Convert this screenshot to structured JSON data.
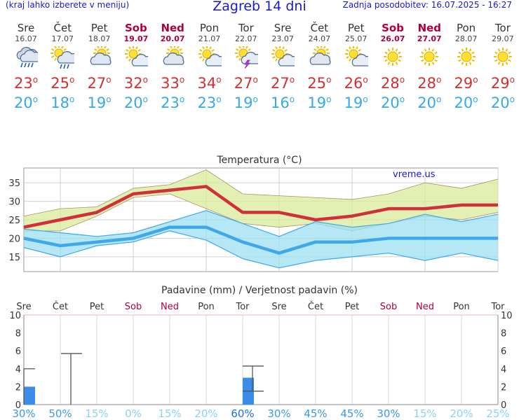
{
  "header": {
    "menu_hint": "(kraj lahko izberete v meniju)",
    "title": "Zagreb 14 dni",
    "updated": "Zadnja posodobitev: 16.07.2025 - 16:27"
  },
  "days": [
    {
      "name": "Sre",
      "date": "16.07",
      "weekend": false,
      "icon": "cloud-rain-icon",
      "tmax": "23",
      "tmin": "20"
    },
    {
      "name": "Čet",
      "date": "17.07",
      "weekend": false,
      "icon": "sun-cloud-rain-icon",
      "tmax": "25",
      "tmin": "18"
    },
    {
      "name": "Pet",
      "date": "18.07",
      "weekend": false,
      "icon": "partly-cloudy-icon",
      "tmax": "27",
      "tmin": "19"
    },
    {
      "name": "Sob",
      "date": "19.07",
      "weekend": true,
      "icon": "sun-cloud-icon",
      "tmax": "32",
      "tmin": "20"
    },
    {
      "name": "Ned",
      "date": "20.07",
      "weekend": true,
      "icon": "partly-cloudy-icon",
      "tmax": "33",
      "tmin": "23"
    },
    {
      "name": "Pon",
      "date": "21.07",
      "weekend": false,
      "icon": "sun-cloud-icon",
      "tmax": "34",
      "tmin": "23"
    },
    {
      "name": "Tor",
      "date": "22.07",
      "weekend": false,
      "icon": "thunderstorm-icon",
      "tmax": "27",
      "tmin": "19"
    },
    {
      "name": "Sre",
      "date": "23.07",
      "weekend": false,
      "icon": "sun-cloud-icon",
      "tmax": "27",
      "tmin": "16"
    },
    {
      "name": "Čet",
      "date": "24.07",
      "weekend": false,
      "icon": "partly-cloudy-icon",
      "tmax": "25",
      "tmin": "19"
    },
    {
      "name": "Pet",
      "date": "25.07",
      "weekend": false,
      "icon": "sun-cloud-icon",
      "tmax": "26",
      "tmin": "19"
    },
    {
      "name": "Sob",
      "date": "26.07",
      "weekend": true,
      "icon": "sun-icon",
      "tmax": "28",
      "tmin": "20"
    },
    {
      "name": "Ned",
      "date": "27.07",
      "weekend": true,
      "icon": "sun-icon",
      "tmax": "28",
      "tmin": "20"
    },
    {
      "name": "Pon",
      "date": "28.07",
      "weekend": false,
      "icon": "sun-icon",
      "tmax": "29",
      "tmin": "20"
    },
    {
      "name": "Tor",
      "date": "29.07",
      "weekend": false,
      "icon": "sun-icon",
      "tmax": "29",
      "tmin": "20"
    }
  ],
  "degree_symbol": "o",
  "colors": {
    "max_line": "#d0303a",
    "max_band": "#d8ec9a",
    "min_line": "#40a8ea",
    "min_band": "#9ce0f0",
    "overlap_band": "#8ed69a",
    "bar": "#3a8eea",
    "weekend_label": "#b0003a"
  },
  "chart_data": [
    {
      "type": "line",
      "title": "Temperatura (°C)",
      "watermark": "vreme.us",
      "categories": [
        "16.07",
        "17.07",
        "18.07",
        "19.07",
        "20.07",
        "21.07",
        "22.07",
        "23.07",
        "24.07",
        "25.07",
        "26.07",
        "27.07",
        "28.07",
        "29.07"
      ],
      "ylim": [
        11,
        39
      ],
      "yticks": [
        15,
        20,
        25,
        30,
        35
      ],
      "grid": true,
      "series": [
        {
          "role": "max",
          "values": [
            23,
            25,
            27,
            32,
            33,
            34,
            27,
            27,
            25,
            26,
            28,
            28,
            29,
            29
          ]
        },
        {
          "role": "max_upper",
          "values": [
            26,
            28,
            28.5,
            33.5,
            34.5,
            38.5,
            32,
            31.5,
            31,
            30.5,
            32,
            35,
            33.5,
            36
          ]
        },
        {
          "role": "max_lower",
          "values": [
            22,
            22,
            26,
            31,
            32,
            28,
            24,
            23,
            24,
            22,
            24,
            26,
            25,
            27
          ]
        },
        {
          "role": "min",
          "values": [
            20,
            18,
            19,
            20,
            23,
            23,
            19,
            16,
            19,
            19,
            20,
            20,
            20,
            20
          ]
        },
        {
          "role": "min_upper",
          "values": [
            22.5,
            21.5,
            20.5,
            21.5,
            24.5,
            27.5,
            24,
            20.5,
            24.5,
            23,
            24,
            26.5,
            24.5,
            26.5
          ]
        },
        {
          "role": "min_lower",
          "values": [
            17.5,
            15,
            18,
            19,
            22,
            19.5,
            14.5,
            12,
            14,
            15,
            16,
            14,
            16,
            14
          ]
        }
      ]
    },
    {
      "type": "bar",
      "title": "Padavine (mm) / Verjetnost padavin (%)",
      "categories": [
        "Sre",
        "Čet",
        "Pet",
        "Sob",
        "Ned",
        "Pon",
        "Tor",
        "Sre",
        "Čet",
        "Pet",
        "Sob",
        "Ned",
        "Pon",
        "Tor"
      ],
      "weekend": [
        false,
        false,
        false,
        true,
        true,
        false,
        false,
        false,
        false,
        false,
        true,
        true,
        false,
        false
      ],
      "ylim": [
        0,
        10
      ],
      "yticks": [
        0,
        2,
        4,
        6,
        8,
        10
      ],
      "values": [
        2,
        0,
        0,
        0,
        0,
        0,
        3,
        0,
        0,
        0,
        0,
        0,
        0,
        0
      ],
      "error_low": [
        0,
        0,
        0,
        0,
        0,
        0,
        1.5,
        0,
        0,
        0,
        0,
        0,
        0,
        0
      ],
      "error_high": [
        4,
        5.7,
        0,
        0,
        0,
        0,
        4.3,
        0,
        0,
        0,
        0,
        0,
        0,
        0
      ],
      "probability": [
        "30%",
        "50%",
        "15%",
        "0%",
        "15%",
        "20%",
        "60%",
        "30%",
        "45%",
        "45%",
        "30%",
        "15%",
        "20%",
        "25%"
      ],
      "probability_values": [
        30,
        50,
        15,
        0,
        15,
        20,
        60,
        30,
        45,
        45,
        30,
        15,
        20,
        25
      ]
    }
  ]
}
